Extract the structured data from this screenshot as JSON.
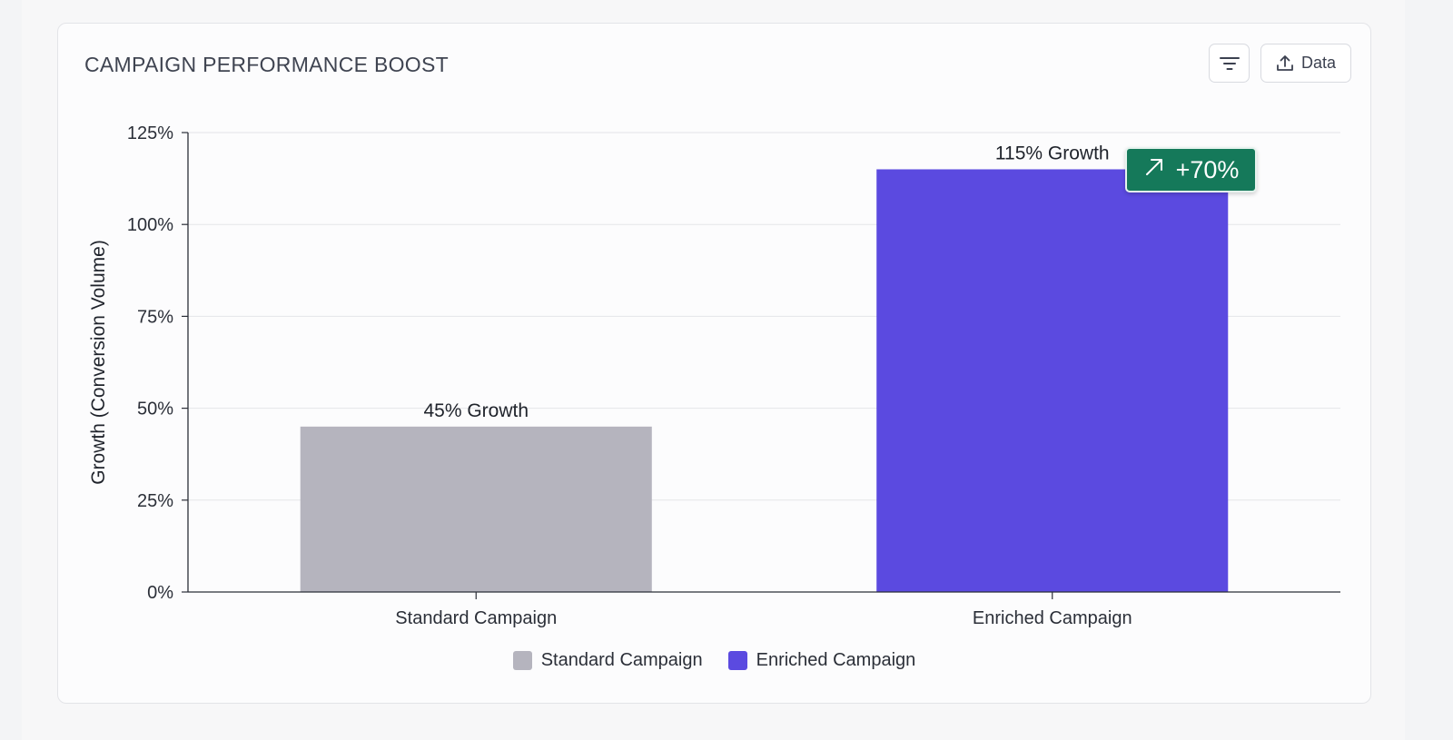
{
  "card": {
    "title": "CAMPAIGN PERFORMANCE BOOST",
    "filter_icon": "filter-lines-icon",
    "data_button_icon": "upload-icon",
    "data_button_label": "Data"
  },
  "badge": {
    "icon": "arrow-up-right-icon",
    "label": "+70%",
    "color": "#15795a"
  },
  "chart_data": {
    "type": "bar",
    "title": "CAMPAIGN PERFORMANCE BOOST",
    "categories": [
      "Standard Campaign",
      "Enriched Campaign"
    ],
    "values": [
      45,
      115
    ],
    "unit": "%",
    "data_labels": [
      "45% Growth",
      "115% Growth"
    ],
    "colors": [
      "#b5b4be",
      "#5b4ae0"
    ],
    "ylabel": "Growth (Conversion Volume)",
    "xlabel": "",
    "ylim": [
      0,
      125
    ],
    "yticks": [
      "0%",
      "25%",
      "50%",
      "75%",
      "100%",
      "125%"
    ],
    "grid": true,
    "legend": {
      "placement": "bottom-center",
      "entries": [
        "Standard Campaign",
        "Enriched Campaign"
      ]
    }
  }
}
